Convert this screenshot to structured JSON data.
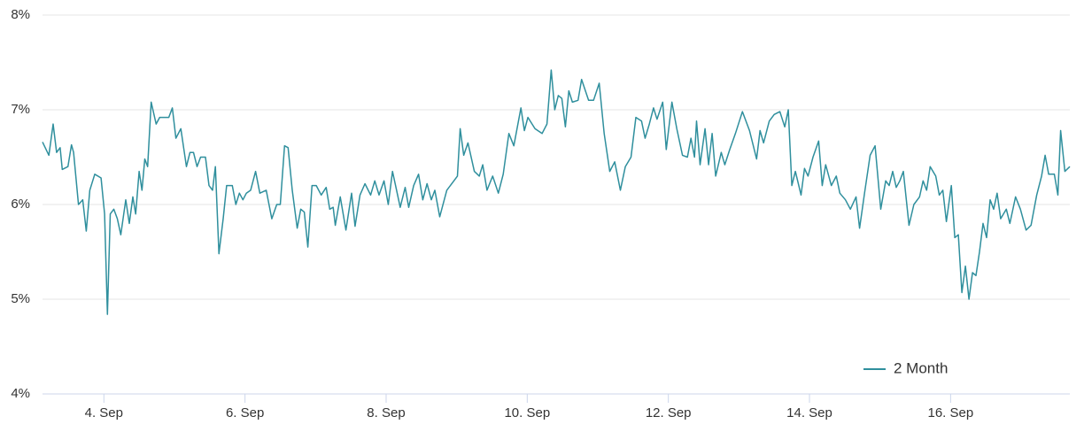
{
  "chart_data": {
    "type": "line",
    "x": [
      3.13,
      3.22,
      3.28,
      3.33,
      3.38,
      3.41,
      3.49,
      3.54,
      3.57,
      3.64,
      3.7,
      3.75,
      3.8,
      3.87,
      3.96,
      4.01,
      4.05,
      4.09,
      4.14,
      4.19,
      4.24,
      4.31,
      4.36,
      4.41,
      4.45,
      4.5,
      4.54,
      4.58,
      4.62,
      4.67,
      4.74,
      4.79,
      4.92,
      4.97,
      5.02,
      5.09,
      5.17,
      5.22,
      5.27,
      5.32,
      5.37,
      5.44,
      5.49,
      5.54,
      5.58,
      5.63,
      5.69,
      5.74,
      5.82,
      5.87,
      5.92,
      5.97,
      6.02,
      6.08,
      6.15,
      6.21,
      6.3,
      6.38,
      6.45,
      6.5,
      6.56,
      6.61,
      6.67,
      6.74,
      6.79,
      6.84,
      6.89,
      6.95,
      7.01,
      7.08,
      7.15,
      7.2,
      7.25,
      7.28,
      7.35,
      7.43,
      7.51,
      7.56,
      7.63,
      7.7,
      7.78,
      7.84,
      7.9,
      7.97,
      8.03,
      8.09,
      8.14,
      8.2,
      8.27,
      8.32,
      8.39,
      8.46,
      8.52,
      8.58,
      8.64,
      8.69,
      8.76,
      8.86,
      8.96,
      9.01,
      9.05,
      9.1,
      9.16,
      9.25,
      9.32,
      9.37,
      9.43,
      9.51,
      9.59,
      9.66,
      9.74,
      9.81,
      9.91,
      9.96,
      10.01,
      10.11,
      10.21,
      10.28,
      10.34,
      10.39,
      10.44,
      10.49,
      10.54,
      10.59,
      10.64,
      10.72,
      10.77,
      10.87,
      10.94,
      11.02,
      11.09,
      11.17,
      11.24,
      11.32,
      11.39,
      11.47,
      11.54,
      11.62,
      11.67,
      11.73,
      11.79,
      11.84,
      11.92,
      11.97,
      12.05,
      12.12,
      12.2,
      12.27,
      12.32,
      12.37,
      12.4,
      12.45,
      12.52,
      12.57,
      12.62,
      12.67,
      12.75,
      12.8,
      12.87,
      12.95,
      13.05,
      13.15,
      13.25,
      13.3,
      13.35,
      13.43,
      13.5,
      13.58,
      13.65,
      13.7,
      13.75,
      13.8,
      13.88,
      13.93,
      13.98,
      14.05,
      14.13,
      14.18,
      14.23,
      14.31,
      14.38,
      14.43,
      14.51,
      14.58,
      14.66,
      14.71,
      14.78,
      14.86,
      14.93,
      15.01,
      15.08,
      15.13,
      15.18,
      15.23,
      15.28,
      15.33,
      15.41,
      15.48,
      15.56,
      15.61,
      15.66,
      15.71,
      15.79,
      15.84,
      15.89,
      15.94,
      16.01,
      16.06,
      16.11,
      16.16,
      16.21,
      16.26,
      16.31,
      16.36,
      16.41,
      16.46,
      16.51,
      16.56,
      16.61,
      16.66,
      16.71,
      16.79,
      16.84,
      16.92,
      16.99,
      17.07,
      17.14,
      17.22,
      17.29,
      17.34,
      17.39,
      17.47,
      17.52,
      17.56,
      17.62,
      17.69
    ],
    "series": [
      {
        "name": "2 Month",
        "color": "#2f8f9d",
        "values": [
          6.66,
          6.52,
          6.85,
          6.55,
          6.6,
          6.37,
          6.4,
          6.63,
          6.55,
          6.0,
          6.05,
          5.72,
          6.15,
          6.32,
          6.28,
          5.9,
          4.84,
          5.9,
          5.95,
          5.85,
          5.68,
          6.05,
          5.8,
          6.08,
          5.9,
          6.35,
          6.15,
          6.48,
          6.4,
          7.08,
          6.85,
          6.92,
          6.92,
          7.02,
          6.7,
          6.8,
          6.4,
          6.55,
          6.55,
          6.4,
          6.5,
          6.5,
          6.2,
          6.15,
          6.4,
          5.48,
          5.85,
          6.2,
          6.2,
          6.0,
          6.12,
          6.05,
          6.12,
          6.15,
          6.35,
          6.12,
          6.15,
          5.85,
          6.0,
          6.0,
          6.62,
          6.6,
          6.15,
          5.75,
          5.95,
          5.92,
          5.55,
          6.2,
          6.2,
          6.1,
          6.18,
          5.95,
          5.97,
          5.78,
          6.08,
          5.73,
          6.12,
          5.77,
          6.1,
          6.22,
          6.1,
          6.25,
          6.1,
          6.25,
          6.0,
          6.35,
          6.18,
          5.97,
          6.18,
          5.97,
          6.2,
          6.32,
          6.05,
          6.22,
          6.05,
          6.15,
          5.87,
          6.15,
          6.25,
          6.3,
          6.8,
          6.52,
          6.65,
          6.35,
          6.3,
          6.42,
          6.15,
          6.3,
          6.12,
          6.32,
          6.75,
          6.62,
          7.02,
          6.78,
          6.92,
          6.8,
          6.75,
          6.85,
          7.42,
          7.0,
          7.15,
          7.12,
          6.82,
          7.2,
          7.08,
          7.1,
          7.32,
          7.1,
          7.1,
          7.28,
          6.75,
          6.35,
          6.45,
          6.15,
          6.4,
          6.5,
          6.92,
          6.88,
          6.7,
          6.85,
          7.02,
          6.9,
          7.08,
          6.58,
          7.08,
          6.8,
          6.52,
          6.5,
          6.7,
          6.5,
          6.88,
          6.42,
          6.8,
          6.42,
          6.75,
          6.3,
          6.55,
          6.42,
          6.58,
          6.75,
          6.98,
          6.78,
          6.48,
          6.78,
          6.65,
          6.88,
          6.95,
          6.98,
          6.82,
          7.0,
          6.2,
          6.35,
          6.1,
          6.38,
          6.3,
          6.5,
          6.67,
          6.2,
          6.42,
          6.2,
          6.3,
          6.12,
          6.05,
          5.95,
          6.08,
          5.75,
          6.12,
          6.52,
          6.62,
          5.95,
          6.25,
          6.2,
          6.35,
          6.18,
          6.25,
          6.35,
          5.78,
          6.0,
          6.08,
          6.25,
          6.15,
          6.4,
          6.3,
          6.1,
          6.15,
          5.82,
          6.2,
          5.65,
          5.68,
          5.07,
          5.35,
          5.0,
          5.28,
          5.25,
          5.5,
          5.8,
          5.65,
          6.05,
          5.95,
          6.12,
          5.85,
          5.95,
          5.8,
          6.08,
          5.95,
          5.73,
          5.78,
          6.1,
          6.3,
          6.52,
          6.32,
          6.32,
          6.1,
          6.78,
          6.35,
          6.4
        ]
      }
    ],
    "xlim": [
      3.13,
      17.69
    ],
    "xticks": [
      {
        "value": 4,
        "label": "4. Sep"
      },
      {
        "value": 6,
        "label": "6. Sep"
      },
      {
        "value": 8,
        "label": "8. Sep"
      },
      {
        "value": 10,
        "label": "10. Sep"
      },
      {
        "value": 12,
        "label": "12. Sep"
      },
      {
        "value": 14,
        "label": "14. Sep"
      },
      {
        "value": 16,
        "label": "16. Sep"
      }
    ],
    "ylim": [
      4,
      8
    ],
    "yticks": [
      {
        "value": 4,
        "label": "4%"
      },
      {
        "value": 5,
        "label": "5%"
      },
      {
        "value": 6,
        "label": "6%"
      },
      {
        "value": 7,
        "label": "7%"
      },
      {
        "value": 8,
        "label": "8%"
      }
    ],
    "grid": true,
    "legend": "bottom-right"
  }
}
